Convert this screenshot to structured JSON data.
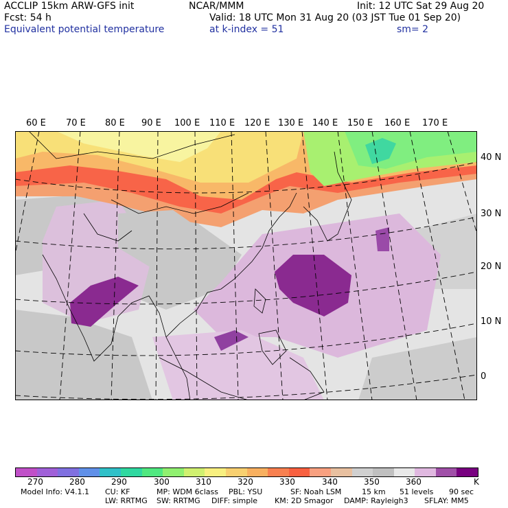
{
  "header": {
    "line1_left": "ACCLIP 15km ARW-GFS init",
    "line1_center": "NCAR/MMM",
    "line1_right": "Init: 12 UTC Sat 29 Aug 20",
    "line2_left": "Fcst:   54 h",
    "line2_right": "Valid: 18 UTC Mon 31 Aug 20 (03 JST Tue 01 Sep 20)",
    "line3_left": "Equivalent potential temperature",
    "line3_center": "at k-index =  51",
    "line3_right": "sm= 2"
  },
  "map": {
    "lon_labels": [
      "60 E",
      "70 E",
      "80 E",
      "90 E",
      "100 E",
      "110 E",
      "120 E",
      "130 E",
      "140 E",
      "150 E",
      "160 E",
      "170 E"
    ],
    "lat_labels": [
      "40 N",
      "30 N",
      "20 N",
      "10 N",
      "0"
    ]
  },
  "colorbar": {
    "colors": [
      "#c050c8",
      "#a060d8",
      "#8070e0",
      "#6090e8",
      "#30c0c8",
      "#30d8a0",
      "#50e880",
      "#90f070",
      "#d0f070",
      "#f8f080",
      "#f8d070",
      "#f8b060",
      "#f88050",
      "#f86040",
      "#f8a080",
      "#e8c0a0",
      "#d0d0d0",
      "#c0c0c0",
      "#e8e8e8",
      "#e0b8e0",
      "#a050a8",
      "#780080"
    ],
    "labels": [
      "270",
      "280",
      "290",
      "300",
      "310",
      "320",
      "330",
      "340",
      "350",
      "360"
    ],
    "unit": "K"
  },
  "footer": {
    "line1": [
      "Model Info: V4.1.1",
      "CU: KF",
      "MP: WDM 6class",
      "PBL: YSU",
      "SF: Noah LSM",
      "15 km",
      "51 levels",
      "90 sec"
    ],
    "line2": [
      "LW: RRTMG",
      "SW: RRTMG",
      "DIFF: simple",
      "KM: 2D Smagor",
      "DAMP: Rayleigh3",
      "SFLAY: MM5"
    ]
  }
}
